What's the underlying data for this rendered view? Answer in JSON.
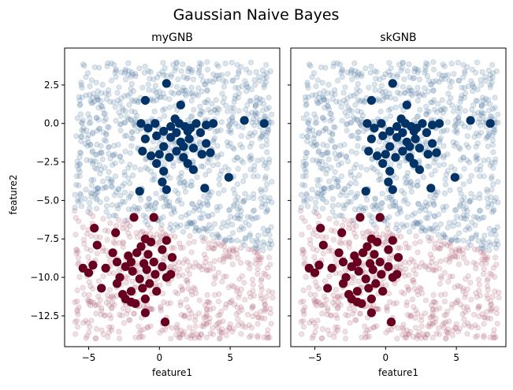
{
  "chart_data": {
    "type": "scatter",
    "title": "Gaussian Naive Bayes",
    "ylabel": "feature2",
    "colors": {
      "class0": "#023366",
      "class1": "#68001f",
      "bg_class0": "#5f86aa",
      "bg_class1": "#b87286"
    },
    "subplots": [
      {
        "title": "myGNB",
        "xlabel": "feature1"
      },
      {
        "title": "skGNB",
        "xlabel": "feature1"
      }
    ],
    "xlim": [
      -6.7,
      8.5
    ],
    "ylim": [
      -14.5,
      4.9
    ],
    "xticks": [
      -5,
      0,
      5
    ],
    "yticks": [
      2.5,
      0.0,
      -2.5,
      -5.0,
      -7.5,
      -10.0,
      -12.5
    ],
    "xtick_labels": [
      "−5",
      "0",
      "5"
    ],
    "ytick_labels": [
      "2.5",
      "0.0",
      "−2.5",
      "−5.0",
      "−7.5",
      "−10.0",
      "−12.5"
    ],
    "background_grid": {
      "x_range": [
        -6,
        8
      ],
      "y_range": [
        -14,
        4
      ],
      "description_level": "predicted class over grid"
    },
    "train_class0": [
      [
        -1.0,
        1.5
      ],
      [
        0.5,
        2.6
      ],
      [
        1.5,
        1.2
      ],
      [
        1.1,
        0.3
      ],
      [
        -1.3,
        0.0
      ],
      [
        -0.8,
        -0.3
      ],
      [
        -0.3,
        0.0
      ],
      [
        0.3,
        -0.5
      ],
      [
        0.8,
        -0.2
      ],
      [
        1.4,
        0.0
      ],
      [
        1.8,
        -0.2
      ],
      [
        2.2,
        -0.3
      ],
      [
        2.6,
        0.0
      ],
      [
        3.3,
        -0.1
      ],
      [
        3.8,
        0.0
      ],
      [
        6.0,
        0.2
      ],
      [
        7.4,
        0.0
      ],
      [
        -1.0,
        -1.0
      ],
      [
        -0.2,
        -0.8
      ],
      [
        0.8,
        -0.9
      ],
      [
        1.5,
        -1.2
      ],
      [
        2.1,
        -1.0
      ],
      [
        2.9,
        -0.6
      ],
      [
        3.3,
        -1.3
      ],
      [
        -1.2,
        -1.8
      ],
      [
        -0.6,
        -2.1
      ],
      [
        0.0,
        -2.0
      ],
      [
        0.7,
        -2.2
      ],
      [
        1.2,
        -1.8
      ],
      [
        1.7,
        -1.5
      ],
      [
        2.4,
        -1.6
      ],
      [
        3.0,
        -2.0
      ],
      [
        3.6,
        -1.9
      ],
      [
        -0.2,
        -2.6
      ],
      [
        0.3,
        -3.1
      ],
      [
        2.0,
        -2.6
      ],
      [
        2.4,
        -3.0
      ],
      [
        0.2,
        -3.8
      ],
      [
        -1.4,
        -4.4
      ],
      [
        0.5,
        -4.3
      ],
      [
        3.2,
        -4.2
      ],
      [
        4.9,
        -3.5
      ],
      [
        1.2,
        -0.6
      ],
      [
        2.0,
        -0.5
      ],
      [
        0.3,
        -1.5
      ],
      [
        1.7,
        -2.2
      ]
    ],
    "train_class1": [
      [
        -1.8,
        -6.1
      ],
      [
        -0.4,
        -6.1
      ],
      [
        -4.6,
        -6.8
      ],
      [
        -3.1,
        -7.1
      ],
      [
        -1.0,
        -7.5
      ],
      [
        -0.6,
        -7.7
      ],
      [
        0.5,
        -7.6
      ],
      [
        -1.3,
        -8.0
      ],
      [
        -4.4,
        -7.9
      ],
      [
        -3.3,
        -8.4
      ],
      [
        -2.2,
        -8.6
      ],
      [
        -1.6,
        -8.4
      ],
      [
        -0.8,
        -8.5
      ],
      [
        0.2,
        -8.2
      ],
      [
        -3.0,
        -9.0
      ],
      [
        -2.0,
        -9.0
      ],
      [
        -1.1,
        -9.1
      ],
      [
        -0.4,
        -9.0
      ],
      [
        0.2,
        -9.3
      ],
      [
        0.9,
        -8.7
      ],
      [
        -5.4,
        -9.4
      ],
      [
        -4.7,
        -9.2
      ],
      [
        -3.8,
        -9.4
      ],
      [
        -2.4,
        -9.3
      ],
      [
        -1.9,
        -9.6
      ],
      [
        -0.9,
        -9.5
      ],
      [
        -0.3,
        -9.8
      ],
      [
        -5.0,
        -9.7
      ],
      [
        -2.8,
        -10.0
      ],
      [
        -1.4,
        -10.1
      ],
      [
        0.5,
        -10.0
      ],
      [
        -3.0,
        -10.4
      ],
      [
        -2.0,
        -10.9
      ],
      [
        -1.2,
        -10.7
      ],
      [
        -4.1,
        -10.7
      ],
      [
        -2.6,
        -11.1
      ],
      [
        -2.0,
        -11.6
      ],
      [
        -2.4,
        -11.4
      ],
      [
        -1.0,
        -11.4
      ],
      [
        -0.2,
        -10.9
      ],
      [
        -1.0,
        -12.3
      ],
      [
        0.4,
        -12.9
      ],
      [
        -1.7,
        -11.7
      ],
      [
        0.8,
        -9.8
      ],
      [
        -0.7,
        -10.4
      ]
    ]
  }
}
